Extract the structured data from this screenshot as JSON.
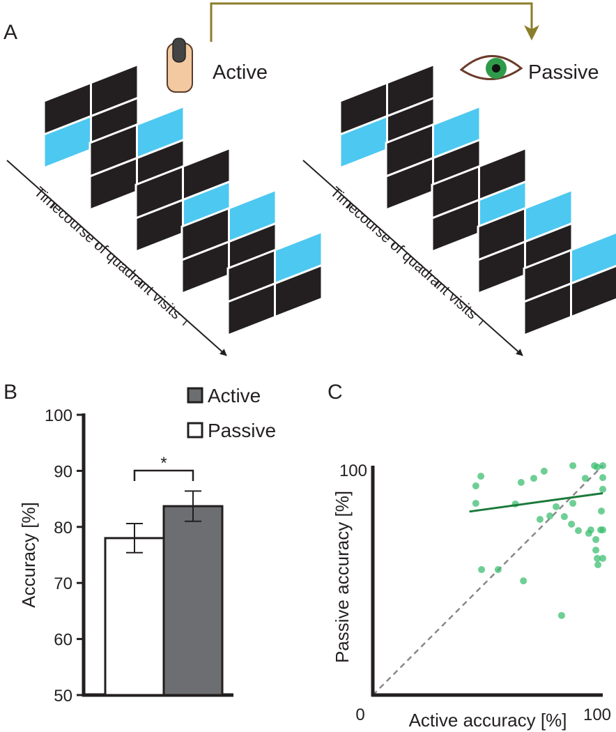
{
  "panel_labels": [
    "A",
    "B",
    "C"
  ],
  "diagram": {
    "conditions": [
      "Active",
      "Passive"
    ],
    "axis_label": "Timecourse of quadrant visits"
  },
  "chart_data": [
    {
      "type": "bar",
      "ylabel": "Accuracy [%]",
      "ylim": [
        50,
        100
      ],
      "yticks": [
        50,
        60,
        70,
        80,
        90,
        100
      ],
      "series": [
        {
          "name": "Active",
          "color": "#6d6e71",
          "values": [
            83.7
          ],
          "errors": [
            2.7
          ]
        },
        {
          "name": "Passive",
          "color": "#ffffff",
          "values": [
            78.0
          ],
          "errors": [
            2.6
          ]
        }
      ],
      "annotation": "*"
    },
    {
      "type": "scatter",
      "xlabel": "Active accuracy [%]",
      "ylabel": "Passive accuracy [%]",
      "xlim": [
        0,
        100
      ],
      "ylim": [
        0,
        100
      ],
      "xticks": [
        0,
        100
      ],
      "yticks": [
        100
      ],
      "color": "#3dbf72",
      "x": [
        47,
        44.8,
        44.8,
        47.3,
        54.5,
        62,
        64.5,
        65.5,
        70,
        74.5,
        72.7,
        77,
        79.7,
        82.1,
        83.3,
        87,
        87,
        86.4,
        89.4,
        92.4,
        94.8,
        96.4,
        97.6,
        100,
        100,
        100,
        99.4,
        99.1,
        100,
        97,
        97.6,
        100,
        97.9,
        97,
        93.9
      ],
      "y": [
        95.4,
        91.2,
        83.6,
        54.7,
        54.7,
        83.3,
        92.7,
        49.8,
        94.5,
        97.6,
        76.6,
        78.1,
        82.1,
        34.7,
        77.8,
        100,
        83.6,
        74.5,
        71.7,
        94.5,
        72,
        100,
        99.4,
        100,
        94.8,
        89.7,
        80.2,
        72,
        72,
        67.8,
        59.6,
        59.6,
        56.8,
        63.2,
        70.5
      ],
      "fit_line": {
        "x": [
          42,
          100
        ],
        "y": [
          80,
          88
        ],
        "color": "#1a7a3a"
      }
    }
  ]
}
